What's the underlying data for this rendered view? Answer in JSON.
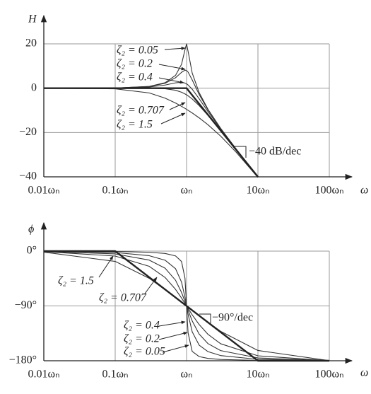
{
  "chart_data": [
    {
      "type": "line",
      "xscale": "log",
      "grid": true,
      "ylabel": "H",
      "xlabel": "ω",
      "xlim": [
        0.01,
        100
      ],
      "ylim": [
        -40,
        20
      ],
      "xticks": [
        {
          "value": 0.01,
          "label": "0.01ωₙ"
        },
        {
          "value": 0.1,
          "label": "0.1ωₙ"
        },
        {
          "value": 1,
          "label": "ωₙ"
        },
        {
          "value": 10,
          "label": "10ωₙ"
        },
        {
          "value": 100,
          "label": "100ωₙ"
        }
      ],
      "yticks": [
        {
          "value": -40,
          "label": "−40"
        },
        {
          "value": -20,
          "label": "−20"
        },
        0,
        20
      ],
      "annotations": [
        "−40 dB/dec"
      ],
      "series": [
        {
          "name": "ζ₂ = 0.05",
          "color": "#333333",
          "x": [
            0.01,
            0.1,
            0.3,
            0.5,
            0.7,
            0.85,
            0.95,
            1,
            1.05,
            1.2,
            1.5,
            2,
            3,
            5,
            10
          ],
          "values": [
            0,
            0.09,
            0.81,
            2.48,
            5.77,
            10.75,
            17.32,
            20.0,
            16.67,
            6.82,
            -2.0,
            -9.56,
            -18.07,
            -27.61,
            -39.91
          ]
        },
        {
          "name": "ζ₂ = 0.2",
          "color": "#333333",
          "x": [
            0.01,
            0.1,
            0.3,
            0.5,
            0.7,
            0.85,
            0.95,
            1,
            1.05,
            1.2,
            1.5,
            2,
            3,
            5,
            10
          ],
          "values": [
            0,
            0.08,
            0.74,
            2.2,
            4.7,
            7.15,
            8.13,
            7.96,
            7.28,
            3.73,
            -2.84,
            -9.84,
            -18.16,
            -27.63,
            -39.92
          ]
        },
        {
          "name": "ζ₂ = 0.4",
          "color": "#333333",
          "x": [
            0.01,
            0.1,
            0.3,
            0.5,
            0.7,
            0.85,
            0.95,
            1,
            1.05,
            1.2,
            1.5,
            2,
            3,
            5,
            10
          ],
          "values": [
            0,
            0.06,
            0.53,
            1.41,
            2.41,
            2.68,
            2.31,
            1.94,
            1.45,
            -0.47,
            -4.77,
            -10.63,
            -18.44,
            -27.72,
            -39.94
          ]
        },
        {
          "name": "ζ₂ = 0.707",
          "color": "#333333",
          "x": [
            0.01,
            0.1,
            0.3,
            0.5,
            0.7,
            0.85,
            0.95,
            1,
            1.05,
            1.2,
            1.5,
            2,
            3,
            5,
            10
          ],
          "values": [
            0,
            0,
            -0.03,
            -0.26,
            -0.93,
            -1.82,
            -2.59,
            -3.01,
            -3.45,
            -4.88,
            -7.83,
            -12.3,
            -19.14,
            -27.97,
            -40.0
          ]
        },
        {
          "name": "ζ₂ = 1.5",
          "color": "#333333",
          "x": [
            0.01,
            0.1,
            0.3,
            0.5,
            0.7,
            0.85,
            0.95,
            1,
            1.05,
            1.2,
            1.5,
            2,
            3,
            5,
            10
          ],
          "values": [
            0,
            -0.29,
            -2.14,
            -4.49,
            -6.69,
            -8.18,
            -9.1,
            -9.54,
            -9.97,
            -11.19,
            -13.39,
            -16.53,
            -21.61,
            -29.04,
            -40.29
          ]
        },
        {
          "color": "#222222",
          "x": [
            0.01,
            1,
            10
          ],
          "values": [
            0,
            0,
            -40
          ]
        }
      ]
    },
    {
      "type": "line",
      "xscale": "log",
      "grid": true,
      "ylabel": "ϕ",
      "xlabel": "ω",
      "xlim": [
        0.01,
        100
      ],
      "ylim": [
        -180,
        0
      ],
      "xticks": [
        {
          "value": 0.01,
          "label": "0.01ωₙ"
        },
        {
          "value": 0.1,
          "label": "0.1ωₙ"
        },
        {
          "value": 1,
          "label": "ωₙ"
        },
        {
          "value": 10,
          "label": "10ωₙ"
        },
        {
          "value": 100,
          "label": "100ωₙ"
        }
      ],
      "yticks": [
        {
          "value": -180,
          "label": "−180°"
        },
        {
          "value": -90,
          "label": "−90°"
        },
        {
          "value": 0,
          "label": "0°"
        }
      ],
      "annotations": [
        "−90°/dec"
      ],
      "series": [
        {
          "name": "ζ₂ = 0.05",
          "color": "#333333",
          "x": [
            0.01,
            0.1,
            0.3,
            0.5,
            0.7,
            0.85,
            0.95,
            1,
            1.05,
            1.2,
            1.5,
            2,
            3,
            10,
            100
          ],
          "values": [
            -0.06,
            -0.58,
            -1.89,
            -3.81,
            -7.81,
            -17.03,
            -44.26,
            -90,
            -134.31,
            -164.74,
            -173.16,
            -176.19,
            -177.85,
            -179.42,
            -179.99
          ]
        },
        {
          "name": "ζ₂ = 0.2",
          "color": "#333333",
          "x": [
            0.01,
            0.1,
            0.3,
            0.5,
            0.7,
            0.85,
            0.95,
            1,
            1.05,
            1.2,
            1.5,
            2,
            3,
            10,
            100
          ],
          "values": [
            -0.23,
            -2.31,
            -7.51,
            -14.93,
            -28.77,
            -50.78,
            -75.61,
            -90,
            -103.71,
            -132.51,
            -154.36,
            -165.07,
            -171.47,
            -177.69,
            -179.98
          ]
        },
        {
          "name": "ζ₂ = 0.4",
          "color": "#333333",
          "x": [
            0.01,
            0.1,
            0.3,
            0.5,
            0.7,
            0.85,
            0.95,
            1,
            1.05,
            1.2,
            1.5,
            2,
            3,
            10,
            100
          ],
          "values": [
            -0.46,
            -4.62,
            -14.77,
            -28.07,
            -47.68,
            -67.8,
            -82.69,
            -90,
            -96.96,
            -114.62,
            -136.17,
            -151.93,
            -163.3,
            -175.38,
            -179.95
          ]
        },
        {
          "name": "ζ₂ = 0.707",
          "color": "#333333",
          "x": [
            0.01,
            0.1,
            0.3,
            0.5,
            0.7,
            0.85,
            0.95,
            1,
            1.05,
            1.2,
            1.5,
            2,
            3,
            10,
            100
          ],
          "values": [
            -0.81,
            -8.13,
            -25.0,
            -43.31,
            -62.74,
            -77.0,
            -85.85,
            -90,
            -93.95,
            -104.54,
            -120.51,
            -136.69,
            -152.06,
            -171.87,
            -179.92
          ]
        },
        {
          "name": "ζ₂ = 1.5",
          "color": "#333333",
          "x": [
            0.01,
            0.1,
            0.3,
            0.5,
            0.7,
            0.85,
            0.95,
            1,
            1.05,
            1.2,
            1.5,
            2,
            3,
            10,
            100
          ],
          "values": [
            -1.72,
            -16.86,
            -44.68,
            -63.43,
            -76.35,
            -83.79,
            -88.04,
            -90,
            -91.86,
            -96.97,
            -105.52,
            -116.57,
            -131.63,
            -163.14,
            -179.83
          ]
        },
        {
          "color": "#222222",
          "x": [
            0.01,
            0.1,
            10,
            100
          ],
          "values": [
            0,
            0,
            -180,
            -180
          ]
        }
      ]
    }
  ]
}
